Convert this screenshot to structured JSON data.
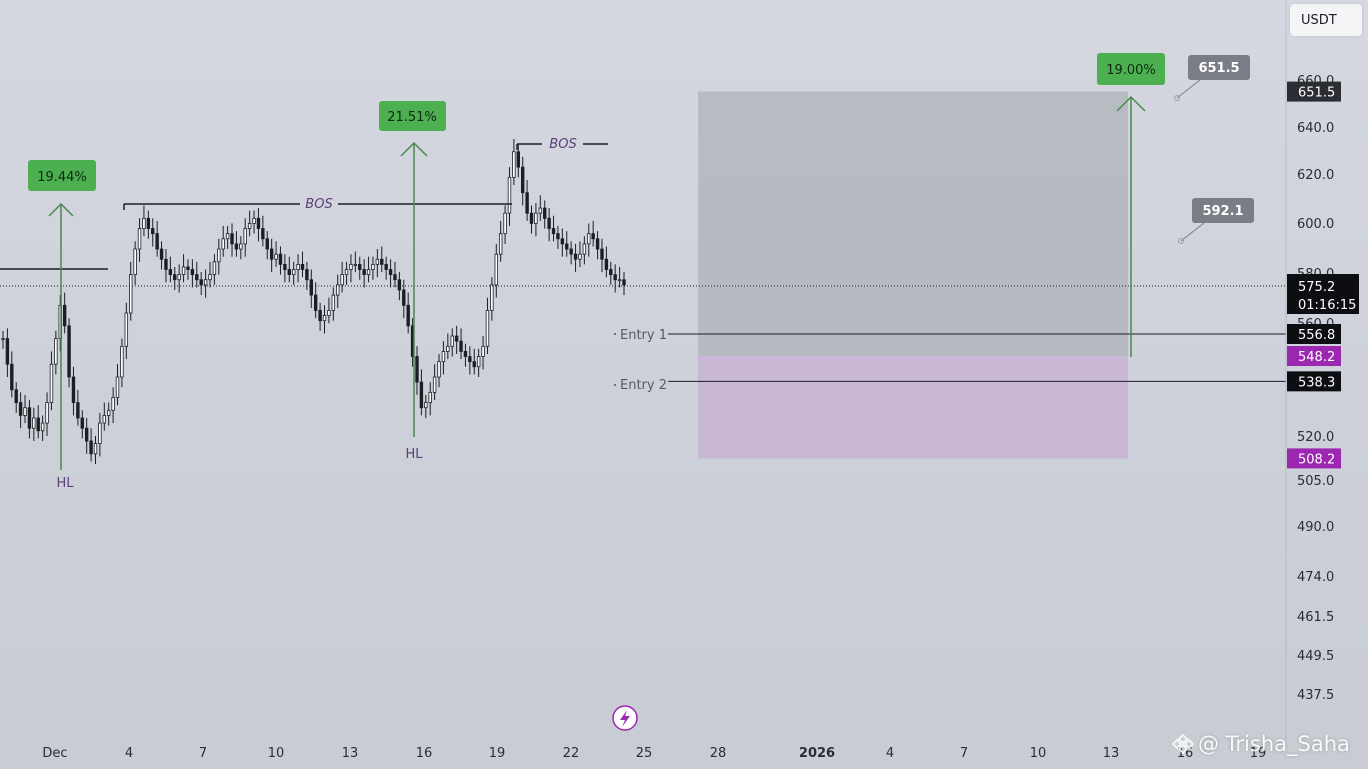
{
  "currency": {
    "label": "USDT"
  },
  "watermark": {
    "text": "@ Trisha_Saha"
  },
  "colors": {
    "bar": "#1c1e24",
    "arrow": "#4a8a4e",
    "badge_green": "#4caf50",
    "badge_grey": "#7a7d86",
    "purple_label": "#9c27b0",
    "target_zone": "#aeb1b8",
    "entry_zone": "#c7b3d4",
    "annotation_text": "#5a3f7a"
  },
  "chart_data": {
    "type": "candlestick",
    "price_axis": {
      "ticks": [
        "660.0",
        "640.0",
        "620.0",
        "600.0",
        "580.0",
        "560.0",
        "520.0",
        "505.0",
        "490.0",
        "474.0",
        "461.5",
        "449.5",
        "437.5"
      ]
    },
    "time_axis": {
      "ticks": [
        "Dec",
        "4",
        "7",
        "10",
        "13",
        "16",
        "19",
        "22",
        "25",
        "28",
        "2026",
        "4",
        "7",
        "10",
        "13",
        "16",
        "19"
      ]
    },
    "last_price": {
      "price": "575.2",
      "countdown": "01:16:15"
    },
    "price_labels": [
      {
        "id": "target",
        "text": "651.5",
        "value": 651.5,
        "style": "dark"
      },
      {
        "id": "entry1",
        "text": "556.8",
        "value": 556.8,
        "style": "black"
      },
      {
        "id": "zone_top",
        "text": "548.2",
        "value": 548.2,
        "style": "purple"
      },
      {
        "id": "entry2",
        "text": "538.3",
        "value": 538.3,
        "style": "black"
      },
      {
        "id": "zone_bottom",
        "text": "508.2",
        "value": 508.2,
        "style": "purple"
      }
    ],
    "annotations": {
      "bos": [
        "BOS",
        "BOS"
      ],
      "hl": [
        "HL",
        "HL"
      ],
      "entries": [
        "Entry 1",
        "Entry 2"
      ],
      "percent_badges": [
        "19.44%",
        "21.51%",
        "19.00%"
      ],
      "callouts": [
        "651.5",
        "592.1"
      ]
    },
    "zones": [
      {
        "name": "target",
        "from": 548.2,
        "to": 651.5
      },
      {
        "name": "entry",
        "from": 508.2,
        "to": 548.2
      }
    ],
    "closes": [
      555,
      545,
      535,
      530,
      525,
      528,
      520,
      524,
      519,
      522,
      530,
      545,
      555,
      568,
      560,
      540,
      530,
      524,
      520,
      515,
      510,
      514,
      522,
      525,
      527,
      532,
      540,
      552,
      565,
      580,
      590,
      598,
      602,
      598,
      596,
      590,
      586,
      582,
      580,
      578,
      580,
      583,
      582,
      580,
      578,
      576,
      578,
      580,
      585,
      590,
      594,
      596,
      592,
      590,
      592,
      598,
      600,
      602,
      598,
      594,
      590,
      586,
      588,
      584,
      582,
      580,
      582,
      584,
      582,
      578,
      572,
      566,
      562,
      564,
      566,
      572,
      576,
      580,
      582,
      584,
      584,
      582,
      580,
      582,
      584,
      586,
      584,
      582,
      580,
      578,
      574,
      568,
      560,
      548,
      538,
      528,
      530,
      534,
      540,
      546,
      550,
      552,
      556,
      554,
      550,
      548,
      546,
      544,
      548,
      552,
      566,
      576,
      588,
      596,
      604,
      618,
      628,
      622,
      612,
      604,
      600,
      604,
      606,
      602,
      598,
      596,
      594,
      592,
      590,
      588,
      586,
      588,
      592,
      596,
      594,
      590,
      586,
      582,
      580,
      578,
      578,
      576
    ]
  }
}
